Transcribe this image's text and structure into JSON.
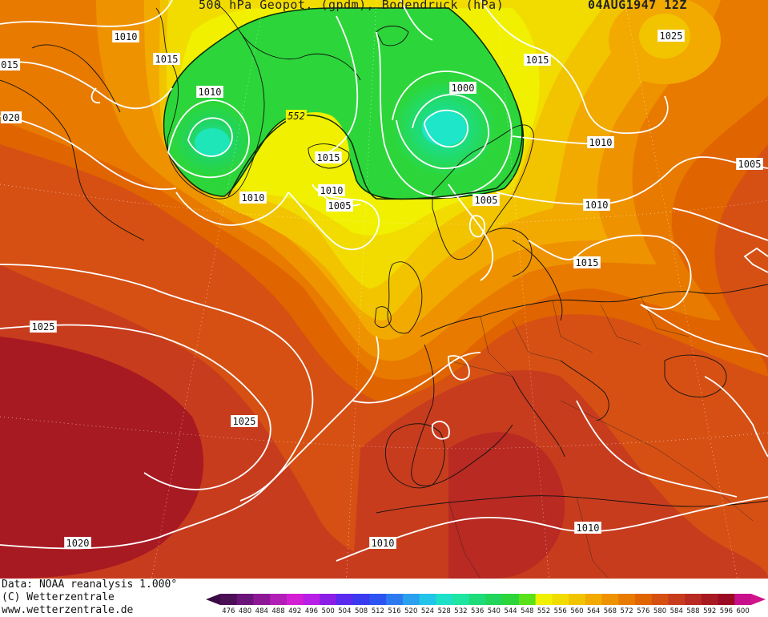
{
  "header": {
    "title": "500 hPa Geopot. (gpdm), Bodendruck (hPa)",
    "date": "04AUG1947 12Z"
  },
  "footer": {
    "data_source": "Data: NOAA reanalysis 1.000°",
    "copyright": "(C) Wetterzentrale",
    "website": "www.wetterzentrale.de"
  },
  "legend": {
    "values": [
      "476",
      "480",
      "484",
      "488",
      "492",
      "496",
      "500",
      "504",
      "508",
      "512",
      "516",
      "520",
      "524",
      "528",
      "532",
      "536",
      "540",
      "544",
      "548",
      "552",
      "556",
      "560",
      "564",
      "568",
      "572",
      "576",
      "580",
      "584",
      "588",
      "592",
      "596",
      "600"
    ],
    "colors": [
      "#4b0f55",
      "#6a1479",
      "#8d1896",
      "#b11fb6",
      "#d31ed3",
      "#b71ee6",
      "#8a1ee6",
      "#5a2aef",
      "#3a3af0",
      "#2d54f0",
      "#2d7af0",
      "#2aa0ee",
      "#22c4e8",
      "#1ee0c8",
      "#1ee6a0",
      "#1edc7a",
      "#22d45a",
      "#2cd63a",
      "#5ae11a",
      "#f0f000",
      "#f2dc00",
      "#f2c400",
      "#f2aa00",
      "#ee9200",
      "#e87a00",
      "#e06400",
      "#d65014",
      "#c83c1e",
      "#b82a22",
      "#a81a22",
      "#9a0a22",
      "#c8108c"
    ]
  },
  "pressure_labels": [
    {
      "text": "1010"
    },
    {
      "text": "1015"
    },
    {
      "text": "015"
    },
    {
      "text": "020"
    },
    {
      "text": "1010"
    },
    {
      "text": "552"
    },
    {
      "text": "1015"
    },
    {
      "text": "1010"
    },
    {
      "text": "1010"
    },
    {
      "text": "1005"
    },
    {
      "text": "1000"
    },
    {
      "text": "1015"
    },
    {
      "text": "1005"
    },
    {
      "text": "1010"
    },
    {
      "text": "1010"
    },
    {
      "text": "1005"
    },
    {
      "text": "1015"
    },
    {
      "text": "1025"
    },
    {
      "text": "1025"
    },
    {
      "text": "1020"
    },
    {
      "text": "1010"
    },
    {
      "text": "1010"
    },
    {
      "text": "1025"
    }
  ]
}
